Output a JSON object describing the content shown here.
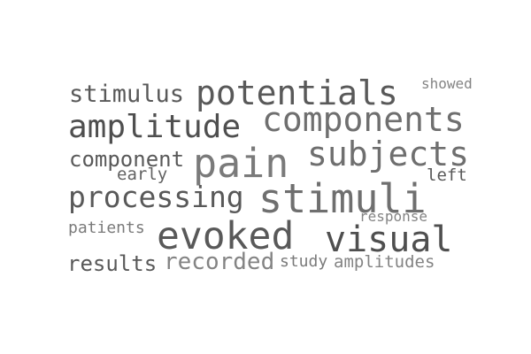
{
  "words": {
    "stimulus": "stimulus",
    "potentials": "potentials",
    "showed": "showed",
    "components": "components",
    "amplitude": "amplitude",
    "component": "component",
    "pain": "pain",
    "subjects": "subjects",
    "early": "early",
    "left": "left",
    "processing": "processing",
    "stimuli": "stimuli",
    "response": "response",
    "patients": "patients",
    "evoked": "evoked",
    "visual": "visual",
    "results": "results",
    "recorded": "recorded",
    "study": "study",
    "amplitudes": "amplitudes"
  }
}
